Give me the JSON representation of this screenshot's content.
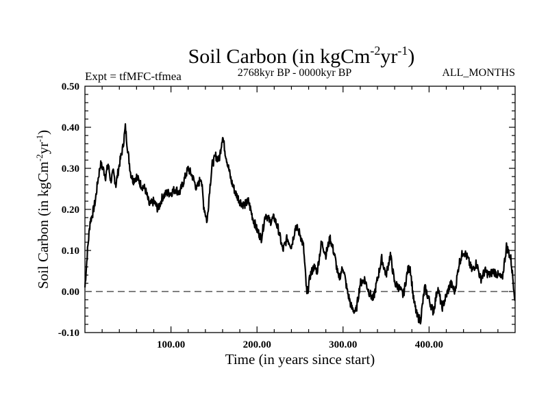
{
  "chart_data": {
    "type": "line",
    "title": "Soil Carbon (in kgCm",
    "title_exp1": "-2",
    "title_mid": "yr",
    "title_exp2": "-1",
    "title_end": ")",
    "subtitle": "2768kyr BP - 0000kyr BP",
    "left_label": "Expt = tfMFC-tfmea",
    "right_label": "ALL_MONTHS",
    "xlabel": "Time (in years since start)",
    "ylabel": "Soil Carbon (in kgCm",
    "ylabel_exp1": "-2",
    "ylabel_mid": "yr",
    "ylabel_exp2": "-1",
    "ylabel_end": ")",
    "xlim": [
      0,
      500
    ],
    "ylim": [
      -0.1,
      0.5
    ],
    "xticks": [
      100,
      200,
      300,
      400
    ],
    "xtick_labels": [
      "100.00",
      "200.00",
      "300.00",
      "400.00"
    ],
    "yticks": [
      -0.1,
      0.0,
      0.1,
      0.2,
      0.3,
      0.4,
      0.5
    ],
    "ytick_labels": [
      "-0.10",
      "0.00",
      "0.10",
      "0.20",
      "0.30",
      "0.40",
      "0.50"
    ],
    "reference_line": 0.0,
    "series": [
      {
        "name": "Soil Carbon",
        "x": [
          0,
          3,
          6,
          9,
          12,
          15,
          18,
          21,
          24,
          27,
          30,
          33,
          36,
          40,
          44,
          47,
          50,
          53,
          56,
          60,
          65,
          70,
          75,
          80,
          85,
          90,
          95,
          100,
          105,
          110,
          115,
          120,
          125,
          130,
          135,
          138,
          142,
          145,
          148,
          152,
          156,
          160,
          163,
          166,
          170,
          175,
          180,
          185,
          190,
          195,
          200,
          205,
          210,
          215,
          220,
          225,
          230,
          235,
          240,
          245,
          250,
          254,
          258,
          262,
          266,
          270,
          275,
          280,
          285,
          290,
          295,
          300,
          305,
          310,
          315,
          320,
          325,
          330,
          335,
          340,
          345,
          350,
          355,
          360,
          365,
          370,
          375,
          378,
          382,
          386,
          390,
          395,
          400,
          405,
          410,
          415,
          420,
          425,
          430,
          435,
          440,
          445,
          450,
          455,
          460,
          465,
          470,
          475,
          480,
          485,
          490,
          495,
          500
        ],
        "y": [
          0.01,
          0.1,
          0.17,
          0.19,
          0.22,
          0.27,
          0.31,
          0.3,
          0.28,
          0.31,
          0.27,
          0.29,
          0.26,
          0.31,
          0.35,
          0.4,
          0.34,
          0.29,
          0.27,
          0.28,
          0.26,
          0.25,
          0.21,
          0.22,
          0.2,
          0.23,
          0.24,
          0.24,
          0.25,
          0.24,
          0.27,
          0.3,
          0.28,
          0.25,
          0.28,
          0.21,
          0.17,
          0.25,
          0.31,
          0.33,
          0.32,
          0.38,
          0.34,
          0.31,
          0.27,
          0.24,
          0.22,
          0.21,
          0.22,
          0.18,
          0.15,
          0.13,
          0.19,
          0.17,
          0.18,
          0.15,
          0.1,
          0.13,
          0.11,
          0.16,
          0.14,
          0.11,
          -0.01,
          0.04,
          0.06,
          0.05,
          0.12,
          0.09,
          0.13,
          0.09,
          0.03,
          0.06,
          0.0,
          -0.04,
          -0.05,
          0.02,
          0.03,
          0.0,
          -0.02,
          0.03,
          0.08,
          0.04,
          0.09,
          0.02,
          0.01,
          -0.01,
          0.05,
          0.06,
          -0.02,
          -0.06,
          -0.07,
          0.01,
          -0.02,
          -0.05,
          0.01,
          -0.04,
          -0.01,
          0.02,
          0.0,
          0.07,
          0.1,
          0.08,
          0.05,
          0.07,
          0.03,
          0.05,
          0.04,
          0.05,
          0.04,
          0.03,
          0.11,
          0.08,
          -0.02
        ]
      }
    ]
  }
}
